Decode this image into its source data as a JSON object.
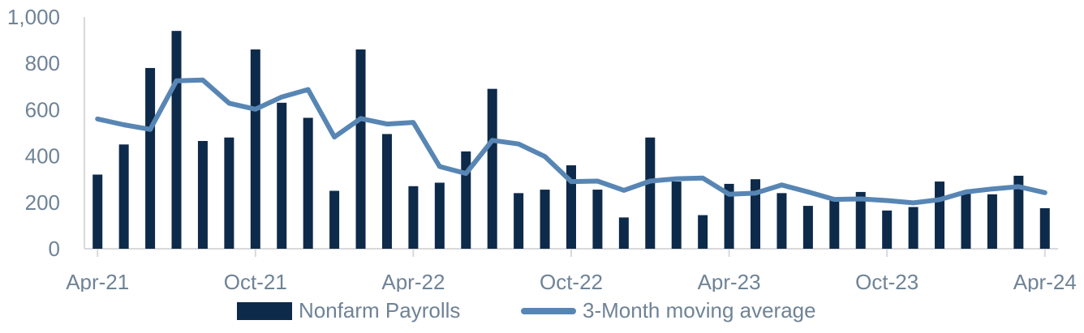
{
  "colors": {
    "bar": "#0d2a4a",
    "line": "#5886b4",
    "axis_text": "#6f8396",
    "axis_line": "#d9d9d9"
  },
  "chart_data": {
    "type": "bar",
    "title": "",
    "xlabel": "",
    "ylabel": "",
    "ylim": [
      0,
      1000
    ],
    "y_ticks": [
      "0",
      "200",
      "400",
      "600",
      "800",
      "1,000"
    ],
    "x_tick_labels": [
      {
        "index": 0,
        "label": "Apr-21"
      },
      {
        "index": 6,
        "label": "Oct-21"
      },
      {
        "index": 12,
        "label": "Apr-22"
      },
      {
        "index": 18,
        "label": "Oct-22"
      },
      {
        "index": 24,
        "label": "Apr-23"
      },
      {
        "index": 30,
        "label": "Oct-23"
      },
      {
        "index": 36,
        "label": "Apr-24"
      }
    ],
    "categories": [
      "Apr-21",
      "May-21",
      "Jun-21",
      "Jul-21",
      "Aug-21",
      "Sep-21",
      "Oct-21",
      "Nov-21",
      "Dec-21",
      "Jan-22",
      "Feb-22",
      "Mar-22",
      "Apr-22",
      "May-22",
      "Jun-22",
      "Jul-22",
      "Aug-22",
      "Sep-22",
      "Oct-22",
      "Nov-22",
      "Dec-22",
      "Jan-23",
      "Feb-23",
      "Mar-23",
      "Apr-23",
      "May-23",
      "Jun-23",
      "Jul-23",
      "Aug-23",
      "Sep-23",
      "Oct-23",
      "Nov-23",
      "Dec-23",
      "Jan-24",
      "Feb-24",
      "Mar-24",
      "Apr-24"
    ],
    "series": [
      {
        "name": "Nonfarm Payrolls",
        "type": "bar",
        "values": [
          320,
          450,
          780,
          940,
          465,
          480,
          860,
          630,
          565,
          250,
          860,
          495,
          270,
          285,
          420,
          690,
          240,
          255,
          360,
          255,
          135,
          480,
          290,
          145,
          280,
          300,
          240,
          185,
          210,
          245,
          165,
          180,
          290,
          240,
          235,
          315,
          175
        ]
      },
      {
        "name": "3-Month moving average",
        "type": "line",
        "values": [
          560,
          535,
          515,
          725,
          728,
          628,
          602,
          655,
          687,
          482,
          562,
          538,
          545,
          355,
          325,
          468,
          452,
          398,
          290,
          292,
          252,
          292,
          302,
          305,
          235,
          240,
          275,
          245,
          213,
          215,
          208,
          198,
          212,
          245,
          258,
          268,
          242
        ]
      }
    ],
    "legend_position": "bottom",
    "grid": false
  }
}
